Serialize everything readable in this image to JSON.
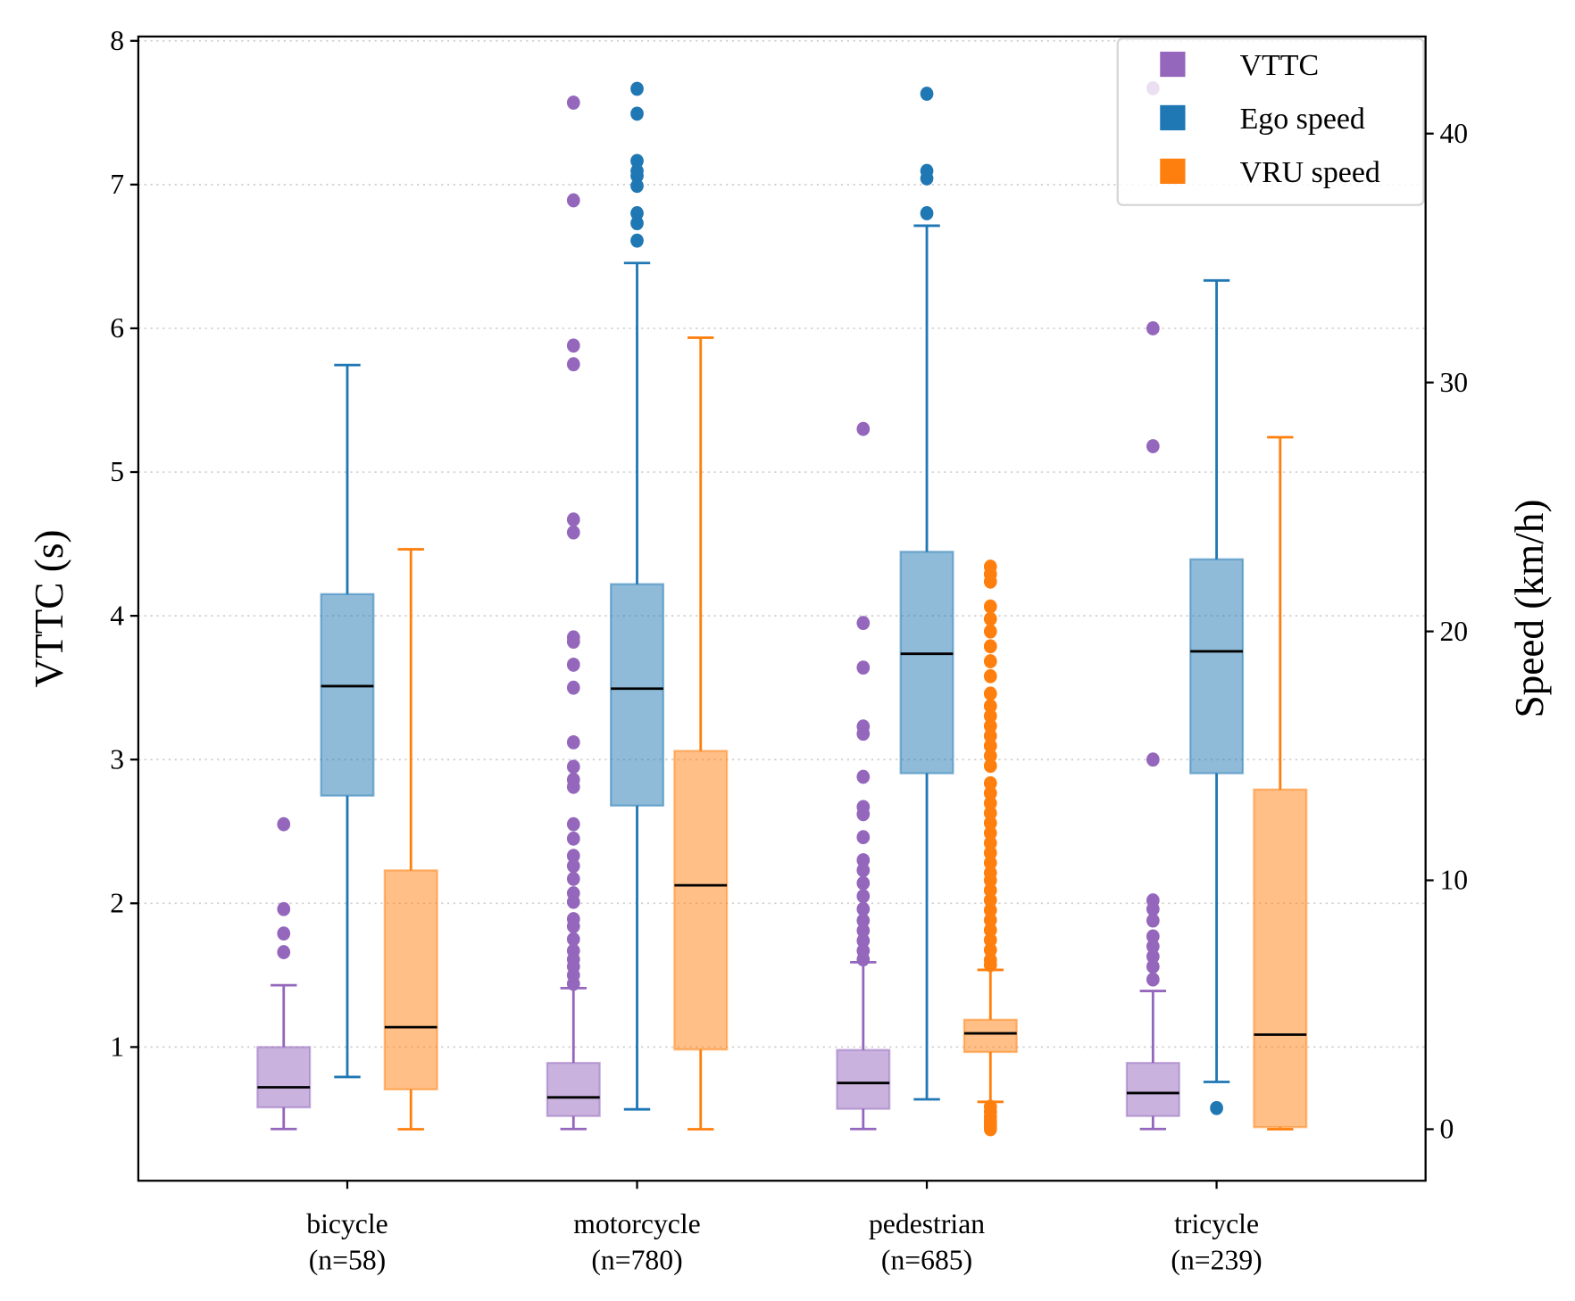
{
  "chart_data": {
    "type": "box",
    "title": "",
    "xlabel": "",
    "ylabel": "VTTC (s)",
    "ylabel_right": "Speed (km/h)",
    "ylim": [
      0.07,
      8.03
    ],
    "ylim_right": [
      -2.07,
      43.9
    ],
    "yticks": [
      "1",
      "2",
      "3",
      "4",
      "5",
      "6",
      "7",
      "8"
    ],
    "yticks_right": [
      "0",
      "10",
      "20",
      "30",
      "40"
    ],
    "grid": "horizontal dotted (left axis)",
    "legend_placement": "top-right",
    "categories": [
      "bicycle\n(n=58)",
      "motorcycle\n(n=780)",
      "pedestrian\n(n=685)",
      "tricycle\n(n=239)"
    ],
    "category_lines": [
      [
        "bicycle",
        "(n=58)"
      ],
      [
        "motorcycle",
        "(n=780)"
      ],
      [
        "pedestrian",
        "(n=685)"
      ],
      [
        "tricycle",
        "(n=239)"
      ]
    ],
    "series": [
      {
        "name": "VTTC",
        "axis": "left",
        "color": "#9467bd",
        "boxes": [
          {
            "whislo": 0.43,
            "q1": 0.58,
            "med": 0.72,
            "q3": 1.0,
            "whishi": 1.43,
            "fliers": [
              2.55,
              1.96,
              1.79,
              1.66
            ]
          },
          {
            "whislo": 0.43,
            "q1": 0.52,
            "med": 0.65,
            "q3": 0.89,
            "whishi": 1.41,
            "fliers": [
              7.57,
              6.89,
              5.88,
              5.75,
              4.67,
              4.58,
              3.85,
              3.82,
              3.66,
              3.5,
              3.12,
              2.95,
              2.86,
              2.81,
              2.55,
              2.45,
              2.33,
              2.26,
              2.17,
              2.07,
              2.01,
              1.89,
              1.84,
              1.75,
              1.67,
              1.61,
              1.56,
              1.5,
              1.44
            ]
          },
          {
            "whislo": 0.43,
            "q1": 0.57,
            "med": 0.75,
            "q3": 0.98,
            "whishi": 1.59,
            "fliers": [
              5.3,
              3.95,
              3.64,
              3.23,
              3.18,
              2.88,
              2.67,
              2.62,
              2.46,
              2.3,
              2.23,
              2.14,
              2.05,
              1.96,
              1.88,
              1.81,
              1.74,
              1.67,
              1.61
            ]
          },
          {
            "whislo": 0.43,
            "q1": 0.52,
            "med": 0.68,
            "q3": 0.89,
            "whishi": 1.39,
            "fliers": [
              7.67,
              6.0,
              5.18,
              3.0,
              2.02,
              1.96,
              1.88,
              1.77,
              1.7,
              1.63,
              1.56,
              1.47
            ]
          }
        ]
      },
      {
        "name": "Ego speed",
        "axis": "right",
        "color": "#1f77b4",
        "boxes": [
          {
            "whislo": 2.1,
            "q1": 13.4,
            "med": 17.8,
            "q3": 21.5,
            "whishi": 30.7,
            "fliers": []
          },
          {
            "whislo": 0.8,
            "q1": 13.0,
            "med": 17.7,
            "q3": 21.9,
            "whishi": 34.8,
            "fliers": [
              41.8,
              40.8,
              38.9,
              38.5,
              38.3,
              37.9,
              36.8,
              36.4,
              35.7
            ]
          },
          {
            "whislo": 1.2,
            "q1": 14.3,
            "med": 19.1,
            "q3": 23.2,
            "whishi": 36.3,
            "fliers": [
              41.6,
              38.5,
              38.2,
              36.8
            ]
          },
          {
            "whislo": 1.9,
            "q1": 14.3,
            "med": 19.2,
            "q3": 22.9,
            "whishi": 34.1,
            "fliers": [
              0.85
            ]
          }
        ]
      },
      {
        "name": "VRU speed",
        "axis": "right",
        "color": "#ff7f0e",
        "boxes": [
          {
            "whislo": 0.0,
            "q1": 1.6,
            "med": 4.1,
            "q3": 10.4,
            "whishi": 23.3,
            "fliers": []
          },
          {
            "whislo": 0.0,
            "q1": 3.2,
            "med": 9.8,
            "q3": 15.2,
            "whishi": 31.8,
            "fliers": []
          },
          {
            "whislo": 1.1,
            "q1": 3.1,
            "med": 3.85,
            "q3": 4.4,
            "whishi": 6.4,
            "fliers": [
              22.6,
              22.3,
              22.0,
              21.0,
              20.5,
              20.0,
              19.4,
              18.8,
              18.2,
              17.5,
              17.0,
              16.6,
              16.2,
              15.8,
              15.4,
              15.0,
              14.6,
              13.9,
              13.5,
              13.1,
              12.7,
              12.3,
              11.9,
              11.5,
              11.1,
              10.7,
              10.3,
              10.0,
              9.6,
              9.2,
              8.8,
              8.4,
              8.0,
              7.6,
              7.2,
              6.8,
              6.6,
              0.9,
              0.7,
              0.5,
              0.35,
              0.2,
              0.1,
              0.0
            ]
          },
          {
            "whislo": 0.0,
            "q1": 0.08,
            "med": 3.8,
            "q3": 13.65,
            "whishi": 27.8,
            "fliers": []
          }
        ]
      }
    ]
  }
}
